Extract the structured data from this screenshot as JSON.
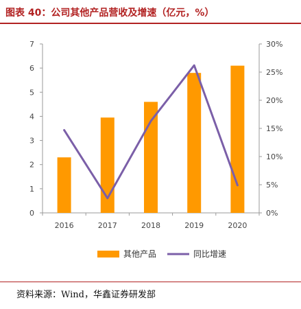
{
  "figure": {
    "title": "图表 40：公司其他产品营收及增速（亿元，%）",
    "source": "资料来源：Wind，华鑫证券研发部"
  },
  "colors": {
    "bar": "#FF9900",
    "line": "#7B5FA8",
    "axis": "#999999",
    "title": "#B22222"
  },
  "chart_data": {
    "type": "bar",
    "categories": [
      "2016",
      "2017",
      "2018",
      "2019",
      "2020"
    ],
    "series": [
      {
        "name": "其他产品",
        "type": "bar",
        "axis": "left",
        "values": [
          2.3,
          3.95,
          4.6,
          5.8,
          6.1
        ]
      },
      {
        "name": "同比增速",
        "type": "line",
        "axis": "right",
        "values": [
          14.7,
          2.6,
          16.3,
          26.2,
          4.9
        ]
      }
    ],
    "y_left": {
      "min": 0,
      "max": 7,
      "ticks": [
        0,
        1,
        2,
        3,
        4,
        5,
        6,
        7
      ],
      "tick_labels": [
        "0",
        "1",
        "2",
        "3",
        "4",
        "5",
        "6",
        "7"
      ]
    },
    "y_right": {
      "min": 0,
      "max": 30,
      "ticks": [
        0,
        5,
        10,
        15,
        20,
        25,
        30
      ],
      "tick_labels": [
        "0%",
        "5%",
        "10%",
        "15%",
        "20%",
        "25%",
        "30%"
      ]
    },
    "grid": false,
    "legend": "bottom"
  }
}
